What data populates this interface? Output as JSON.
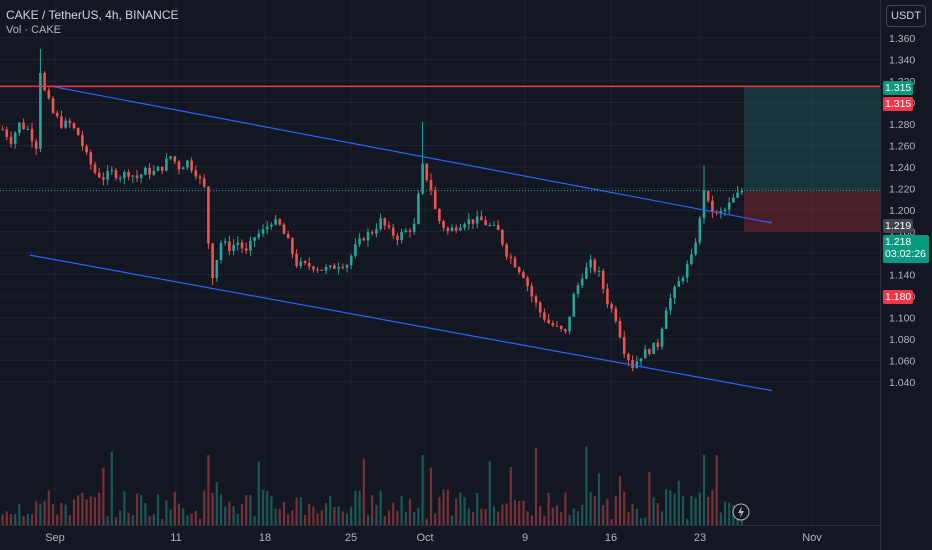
{
  "header": {
    "title": "CAKE / TetherUS, 4h, BINANCE",
    "subtitle": "Vol · CAKE"
  },
  "currency_button": "USDT",
  "price_tags": {
    "target_label": "1.315",
    "resistance_label": "1.315",
    "high_label": "1.219",
    "last_price": "1.218",
    "countdown": "03:02:26",
    "stop_label": "1.180"
  },
  "colors": {
    "background": "#131722",
    "up": "#26a69a",
    "down": "#ef5350",
    "trendline": "#2962ff",
    "resistance": "#f23645",
    "target_zone": "#26a69a",
    "stop_zone": "#f23645"
  },
  "chart_data": {
    "type": "candlestick",
    "symbol": "CAKE / TetherUS",
    "timeframe": "4h",
    "exchange": "BINANCE",
    "y_axis": {
      "range": [
        1.02,
        1.37
      ],
      "ticks": [
        "1.360",
        "1.340",
        "1.320",
        "1.300",
        "1.280",
        "1.260",
        "1.240",
        "1.220",
        "1.200",
        "1.180",
        "1.160",
        "1.140",
        "1.120",
        "1.100",
        "1.080",
        "1.060",
        "1.040"
      ]
    },
    "x_ticks": [
      "Sep",
      "11",
      "18",
      "25",
      "Oct",
      "9",
      "16",
      "23",
      "Nov"
    ],
    "price_path": [
      [
        0,
        1.275
      ],
      [
        2,
        1.265
      ],
      [
        4,
        1.28
      ],
      [
        6,
        1.275
      ],
      [
        8,
        1.26
      ],
      [
        9,
        1.33
      ],
      [
        10,
        1.31
      ],
      [
        12,
        1.29
      ],
      [
        14,
        1.28
      ],
      [
        16,
        1.28
      ],
      [
        18,
        1.27
      ],
      [
        20,
        1.25
      ],
      [
        22,
        1.235
      ],
      [
        24,
        1.23
      ],
      [
        26,
        1.235
      ],
      [
        28,
        1.232
      ],
      [
        30,
        1.235
      ],
      [
        32,
        1.23
      ],
      [
        34,
        1.236
      ],
      [
        36,
        1.235
      ],
      [
        38,
        1.24
      ],
      [
        40,
        1.25
      ],
      [
        42,
        1.24
      ],
      [
        44,
        1.245
      ],
      [
        46,
        1.235
      ],
      [
        48,
        1.22
      ],
      [
        49,
        1.17
      ],
      [
        50,
        1.14
      ],
      [
        52,
        1.17
      ],
      [
        54,
        1.165
      ],
      [
        56,
        1.17
      ],
      [
        58,
        1.16
      ],
      [
        60,
        1.175
      ],
      [
        62,
        1.18
      ],
      [
        64,
        1.19
      ],
      [
        66,
        1.185
      ],
      [
        68,
        1.17
      ],
      [
        70,
        1.15
      ],
      [
        72,
        1.148
      ],
      [
        74,
        1.148
      ],
      [
        76,
        1.145
      ],
      [
        78,
        1.145
      ],
      [
        80,
        1.15
      ],
      [
        82,
        1.15
      ],
      [
        84,
        1.165
      ],
      [
        86,
        1.175
      ],
      [
        88,
        1.18
      ],
      [
        90,
        1.19
      ],
      [
        92,
        1.18
      ],
      [
        94,
        1.175
      ],
      [
        96,
        1.18
      ],
      [
        98,
        1.185
      ],
      [
        100,
        1.24
      ],
      [
        102,
        1.22
      ],
      [
        103,
        1.2
      ],
      [
        104,
        1.19
      ],
      [
        106,
        1.18
      ],
      [
        108,
        1.185
      ],
      [
        110,
        1.19
      ],
      [
        112,
        1.19
      ],
      [
        114,
        1.19
      ],
      [
        116,
        1.185
      ],
      [
        118,
        1.18
      ],
      [
        120,
        1.16
      ],
      [
        122,
        1.15
      ],
      [
        124,
        1.14
      ],
      [
        126,
        1.12
      ],
      [
        128,
        1.105
      ],
      [
        130,
        1.095
      ],
      [
        132,
        1.09
      ],
      [
        134,
        1.085
      ],
      [
        136,
        1.12
      ],
      [
        138,
        1.14
      ],
      [
        140,
        1.15
      ],
      [
        142,
        1.14
      ],
      [
        144,
        1.115
      ],
      [
        146,
        1.1
      ],
      [
        148,
        1.07
      ],
      [
        150,
        1.055
      ],
      [
        152,
        1.065
      ],
      [
        154,
        1.07
      ],
      [
        156,
        1.075
      ],
      [
        158,
        1.11
      ],
      [
        160,
        1.125
      ],
      [
        162,
        1.14
      ],
      [
        164,
        1.155
      ],
      [
        166,
        1.19
      ],
      [
        167,
        1.22
      ],
      [
        168,
        1.205
      ],
      [
        170,
        1.195
      ],
      [
        172,
        1.2
      ],
      [
        174,
        1.21
      ],
      [
        176,
        1.218
      ]
    ],
    "resistance_line": 1.315,
    "position": {
      "entry": 1.218,
      "target": 1.315,
      "stop": 1.18
    },
    "channel": {
      "upper": [
        [
          9,
          1.315
        ],
        [
          176,
          1.188
        ]
      ],
      "lower": [
        [
          7,
          1.158
        ],
        [
          176,
          1.032
        ]
      ]
    },
    "volume_visible": true
  }
}
